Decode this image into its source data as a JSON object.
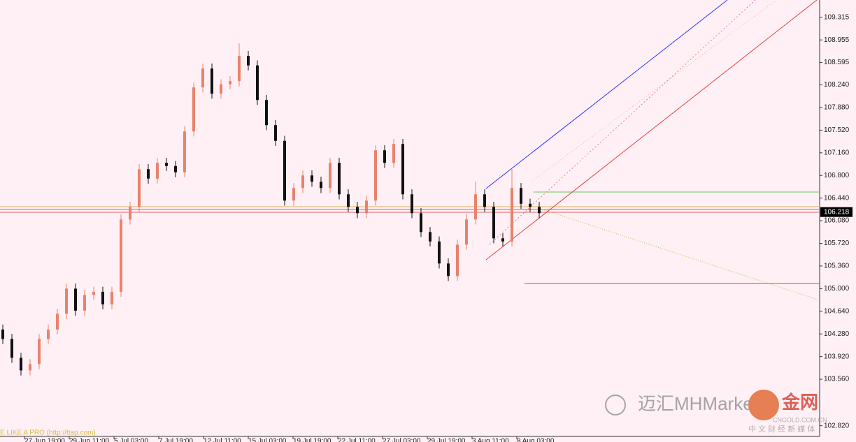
{
  "chart_data": {
    "type": "candlestick",
    "open": [
      104.35,
      104.2,
      103.9,
      103.7,
      103.8,
      104.2,
      104.35,
      104.6,
      105.0,
      104.65,
      104.9,
      104.95,
      104.75,
      104.95,
      106.1,
      106.3,
      106.9,
      106.75,
      107.0,
      106.95,
      106.85,
      107.5,
      108.2,
      108.5,
      108.1,
      108.25,
      108.3,
      108.7,
      108.55,
      108.0,
      107.6,
      107.35,
      106.4,
      106.6,
      106.8,
      106.7,
      106.6,
      107.0,
      106.5,
      106.3,
      106.2,
      106.4,
      107.2,
      107.0,
      107.3,
      106.5,
      106.2,
      105.9,
      105.75,
      105.4,
      105.2,
      105.7,
      106.1,
      106.5,
      106.3,
      105.8,
      105.75,
      106.6,
      106.35,
      106.3
    ],
    "high": [
      104.43,
      104.28,
      103.98,
      103.88,
      104.28,
      104.43,
      104.68,
      105.08,
      105.08,
      104.98,
      105.03,
      105.03,
      105.03,
      106.18,
      106.38,
      106.98,
      106.98,
      107.08,
      107.08,
      107.03,
      107.58,
      108.28,
      108.58,
      108.58,
      108.33,
      108.38,
      108.9,
      108.78,
      108.63,
      108.08,
      107.68,
      107.43,
      106.68,
      106.88,
      106.88,
      106.78,
      107.08,
      107.08,
      106.58,
      106.38,
      106.48,
      107.28,
      107.28,
      107.38,
      107.38,
      106.58,
      106.28,
      105.98,
      105.83,
      105.48,
      105.78,
      106.18,
      106.7,
      106.58,
      106.38,
      105.88,
      106.9,
      106.68,
      106.43,
      106.38
    ],
    "low": [
      104.12,
      103.82,
      103.62,
      103.62,
      103.72,
      104.12,
      104.27,
      104.52,
      104.57,
      104.57,
      104.82,
      104.67,
      104.67,
      104.87,
      106.02,
      106.22,
      106.67,
      106.67,
      106.87,
      106.77,
      106.77,
      107.42,
      108.12,
      108.02,
      108.02,
      108.17,
      108.22,
      108.47,
      107.92,
      107.52,
      107.27,
      106.32,
      106.32,
      106.52,
      106.62,
      106.52,
      106.52,
      106.42,
      106.22,
      106.12,
      106.12,
      106.32,
      106.92,
      106.92,
      106.42,
      106.12,
      105.82,
      105.67,
      105.32,
      105.12,
      105.12,
      105.62,
      106.02,
      106.22,
      105.72,
      105.67,
      105.67,
      106.27,
      106.22,
      106.12
    ],
    "close": [
      104.2,
      103.9,
      103.7,
      103.8,
      104.2,
      104.35,
      104.6,
      105.0,
      104.65,
      104.9,
      104.95,
      104.75,
      104.95,
      106.1,
      106.3,
      106.9,
      106.75,
      107.0,
      106.95,
      106.85,
      107.5,
      108.2,
      108.5,
      108.1,
      108.25,
      108.3,
      108.7,
      108.55,
      108.0,
      107.6,
      107.35,
      106.4,
      106.6,
      106.8,
      106.7,
      106.6,
      107.0,
      106.5,
      106.3,
      106.2,
      106.4,
      107.2,
      107.0,
      107.3,
      106.5,
      106.2,
      105.9,
      105.75,
      105.4,
      105.2,
      105.7,
      106.1,
      106.5,
      106.3,
      105.8,
      105.75,
      106.6,
      106.35,
      106.3,
      106.2
    ],
    "up_color": "#e8826c",
    "down_color": "#111111",
    "x_labels": [
      "27 Jun 19:00",
      "29 Jun 11:00",
      "5 Jul 03:00",
      "7 Jul 19:00",
      "12 Jul 11:00",
      "15 Jul 03:00",
      "19 Jul 19:00",
      "22 Jul 11:00",
      "27 Jul 03:00",
      "29 Jul 19:00",
      "3 Aug 11:00",
      "8 Aug 03:00"
    ],
    "ylim": [
      102.65,
      109.59
    ],
    "yticks": [
      109.315,
      108.955,
      108.595,
      {
        "value": 108.24,
        "label": "108.240"
      },
      {
        "value": 107.88,
        "label": "107.880"
      },
      {
        "value": 107.52,
        "label": "107.520"
      },
      {
        "value": 107.16,
        "label": "107.160"
      },
      {
        "value": 106.8,
        "label": "106.800"
      },
      {
        "value": 106.44,
        "label": "106.440"
      },
      {
        "value": 106.08,
        "label": "106.080"
      },
      {
        "value": 105.72,
        "label": "105.720"
      },
      {
        "value": 105.36,
        "label": "105.360"
      },
      {
        "value": 105.0,
        "label": "105.000"
      },
      {
        "value": 104.64,
        "label": "104.640"
      },
      {
        "value": 104.28,
        "label": "104.280"
      },
      {
        "value": 103.92,
        "label": "103.920"
      },
      {
        "value": 103.56,
        "label": "103.560"
      },
      {
        "value": 102.82,
        "label": "102.820"
      }
    ],
    "last_price": 106.218,
    "footer_text": "E LIKE A PRO (http://ttap.com)",
    "watermark": {
      "brand": "迈汇MHMarkets",
      "logo": "金网",
      "site": "CNGOLD.COM.CN",
      "tagline": "中 文 财 经 新 媒 体"
    }
  }
}
